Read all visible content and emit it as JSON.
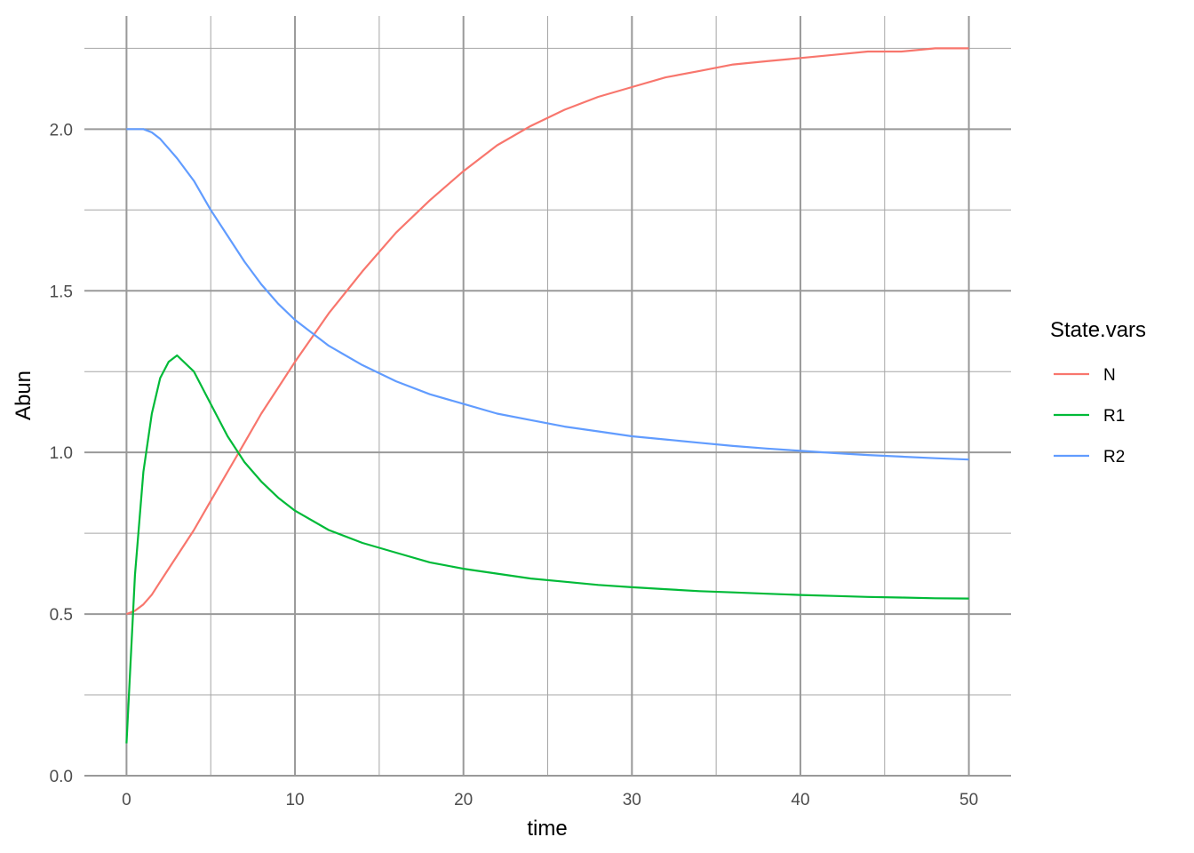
{
  "chart_data": {
    "type": "line",
    "xlabel": "time",
    "ylabel": "Abun",
    "xlim": [
      -2.5,
      52.5
    ],
    "ylim": [
      0,
      2.35
    ],
    "x_ticks": [
      0,
      10,
      20,
      30,
      40,
      50
    ],
    "x_tick_labels": [
      "0",
      "10",
      "20",
      "30",
      "40",
      "50"
    ],
    "y_ticks": [
      0,
      0.5,
      1.0,
      1.5,
      2.0
    ],
    "y_tick_labels": [
      "0.0",
      "0.5",
      "1.0",
      "1.5",
      "2.0"
    ],
    "x_minor": [
      5,
      15,
      25,
      35,
      45
    ],
    "y_minor": [
      0.25,
      0.75,
      1.25,
      1.75,
      2.25
    ],
    "grid": true,
    "legend": {
      "title": "State.vars",
      "position": "right",
      "entries": [
        "N",
        "R1",
        "R2"
      ]
    },
    "x": [
      0,
      0.5,
      1,
      1.5,
      2,
      2.5,
      3,
      4,
      5,
      6,
      7,
      8,
      9,
      10,
      12,
      14,
      16,
      18,
      20,
      22,
      24,
      26,
      28,
      30,
      32,
      34,
      36,
      38,
      40,
      42,
      44,
      46,
      48,
      50
    ],
    "series": [
      {
        "name": "N",
        "color": "#F8766D",
        "values": [
          0.5,
          0.51,
          0.53,
          0.56,
          0.6,
          0.64,
          0.68,
          0.76,
          0.85,
          0.94,
          1.03,
          1.12,
          1.2,
          1.28,
          1.43,
          1.56,
          1.68,
          1.78,
          1.87,
          1.95,
          2.01,
          2.06,
          2.1,
          2.13,
          2.16,
          2.18,
          2.2,
          2.21,
          2.22,
          2.23,
          2.24,
          2.24,
          2.25,
          2.25
        ]
      },
      {
        "name": "R1",
        "color": "#00BA38",
        "values": [
          0.1,
          0.62,
          0.94,
          1.12,
          1.23,
          1.28,
          1.3,
          1.25,
          1.15,
          1.05,
          0.97,
          0.91,
          0.86,
          0.82,
          0.76,
          0.72,
          0.69,
          0.66,
          0.64,
          0.625,
          0.61,
          0.6,
          0.59,
          0.583,
          0.577,
          0.571,
          0.567,
          0.563,
          0.559,
          0.556,
          0.553,
          0.551,
          0.549,
          0.548
        ]
      },
      {
        "name": "R2",
        "color": "#619CFF",
        "values": [
          2.0,
          2.0,
          2.0,
          1.99,
          1.97,
          1.94,
          1.91,
          1.84,
          1.75,
          1.67,
          1.59,
          1.52,
          1.46,
          1.41,
          1.33,
          1.27,
          1.22,
          1.18,
          1.15,
          1.12,
          1.1,
          1.08,
          1.065,
          1.05,
          1.04,
          1.03,
          1.02,
          1.012,
          1.005,
          0.998,
          0.992,
          0.987,
          0.982,
          0.978
        ]
      }
    ]
  }
}
